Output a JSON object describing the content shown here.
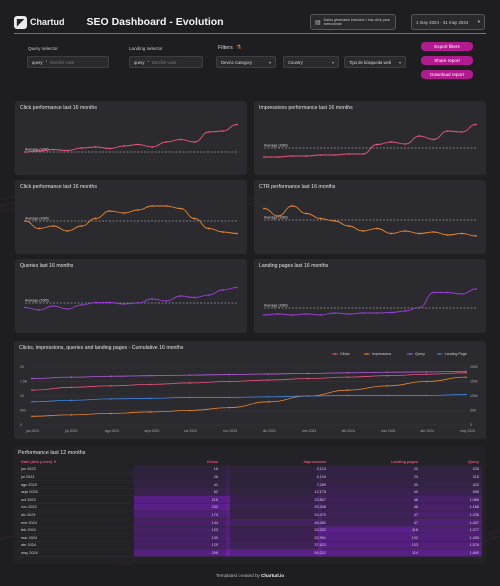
{
  "header": {
    "logo_text": "Chartud",
    "title": "SEO Dashboard - Evolution",
    "info_text": "Datos generales incluidos / haz click para seleccionar",
    "date_range": "1 may 2024 - 31 may 2024"
  },
  "filters": {
    "query_label": "Query selector",
    "landing_label": "Landing selector",
    "filters_label": "Filters",
    "query_value": "query",
    "query_placeholder": "Escribir valor",
    "landing_value": "query",
    "landing_placeholder": "Escribir valor",
    "device_value": "Device Category",
    "country_value": "Country",
    "type_value": "Tipo de búsqueda web"
  },
  "buttons": {
    "export_filters": "Export filters",
    "share_report": "Share report",
    "download_report": "Download report"
  },
  "cards": {
    "clicks_top": "Click performance last 16 months",
    "impressions": "Impressions performance last 16 months",
    "clicks_mid": "Click performance last 16 months",
    "ctr": "CTR performance last 16 months",
    "queries": "Queries last 16 months",
    "landing": "Landing pages last 16 months",
    "avg_label": "Average (16M)",
    "cumulative": "Clicks, impressions, queries and landing pages - Cumulative 16 months"
  },
  "chart_data": [
    {
      "type": "line",
      "title": "Click performance last 16 months",
      "values": [
        30,
        32,
        35,
        33,
        38,
        40,
        37,
        42,
        45,
        40,
        50,
        55,
        50,
        70,
        72,
        85
      ],
      "color": "#e9577d"
    },
    {
      "type": "line",
      "title": "Impressions performance last 16 months",
      "values": [
        20,
        20,
        22,
        22,
        24,
        24,
        26,
        26,
        45,
        50,
        46,
        62,
        55,
        72,
        70,
        85
      ],
      "color": "#e9577d"
    },
    {
      "type": "line",
      "title": "Click performance last 16 months",
      "values": [
        50,
        35,
        40,
        30,
        40,
        55,
        70,
        66,
        72,
        80,
        80,
        75,
        55,
        35,
        28,
        25
      ],
      "color": "#e8872e"
    },
    {
      "type": "line",
      "title": "CTR performance last 16 months",
      "values": [
        75,
        60,
        80,
        65,
        55,
        50,
        40,
        30,
        35,
        25,
        30,
        25,
        28,
        22,
        25,
        20
      ],
      "color": "#e8872e"
    },
    {
      "type": "line",
      "title": "Queries last 16 months",
      "values": [
        35,
        30,
        38,
        32,
        40,
        45,
        45,
        42,
        44,
        52,
        48,
        58,
        55,
        60,
        70,
        75
      ],
      "color": "#9a3fd6"
    },
    {
      "type": "line",
      "title": "Landing pages last 16 months",
      "values": [
        20,
        22,
        20,
        22,
        20,
        24,
        22,
        24,
        24,
        25,
        28,
        35,
        65,
        65,
        62,
        72
      ],
      "color": "#9a3fd6"
    },
    {
      "type": "line",
      "title": "Clicks, impressions, queries and landing pages - Cumulative 16 months",
      "categories": [
        "jun 2023",
        "jul 2023",
        "ago 2023",
        "sept 2023",
        "oct 2023",
        "nov 2023",
        "dic 2023",
        "ene 2024",
        "feb 2024",
        "mar 2024",
        "abr 2024",
        "may 2024"
      ],
      "legend_placement": "top-right",
      "series": [
        {
          "name": "Clicks",
          "color": "#e9577d",
          "values": [
            1.2,
            1.3,
            1.35,
            1.4,
            1.45,
            1.5,
            1.55,
            1.6,
            1.65,
            1.7,
            1.75,
            1.8
          ]
        },
        {
          "name": "Impressions",
          "color": "#e8872e",
          "values": [
            0.3,
            0.35,
            0.4,
            0.45,
            0.5,
            0.6,
            0.8,
            1.0,
            1.2,
            1.35,
            1.5,
            1.65
          ]
        },
        {
          "name": "Query",
          "color": "#b45de0",
          "values": [
            1.6,
            1.65,
            1.68,
            1.7,
            1.72,
            1.74,
            1.76,
            1.78,
            1.8,
            1.82,
            1.83,
            1.85
          ]
        },
        {
          "name": "Landing Page",
          "color": "#3f86e6",
          "values": [
            0.8,
            0.85,
            0.9,
            0.92,
            0.95,
            0.95,
            0.97,
            1.0,
            1.02,
            1.02,
            1.02,
            1.05
          ]
        }
      ]
    }
  ],
  "table": {
    "title": "Performance last 12 months",
    "headers": [
      "Date (Año y mes) ▼",
      "Clicks",
      "Impressions",
      "Landing pages",
      "Query"
    ],
    "rows": [
      [
        "jun 2023",
        "16",
        "3.124",
        "22",
        "226"
      ],
      [
        "jul 2023",
        "26",
        "4.104",
        "23",
        "315"
      ],
      [
        "ago 2023",
        "41",
        "7.289",
        "30",
        "422"
      ],
      [
        "sept 2023",
        "62",
        "12.175",
        "40",
        "596"
      ],
      [
        "oct 2023",
        "215",
        "23.807",
        "46",
        "1.069"
      ],
      [
        "nov 2023",
        "232",
        "25.346",
        "46",
        "1.166"
      ],
      [
        "dic 2023",
        "173",
        "24.470",
        "47",
        "1.236"
      ],
      [
        "ene 2024",
        "144",
        "46.452",
        "47",
        "1.407"
      ],
      [
        "feb 2024",
        "123",
        "32.022",
        "118",
        "1.377"
      ],
      [
        "mar 2024",
        "130",
        "32.991",
        "102",
        "1.453"
      ],
      [
        "abr 2024",
        "129",
        "37.622",
        "103",
        "1.576"
      ],
      [
        "may 2024",
        "208",
        "95.222",
        "114",
        "1.860"
      ]
    ]
  },
  "footer": {
    "prefix": "Templated created by",
    "brand": "Chartud.io"
  }
}
